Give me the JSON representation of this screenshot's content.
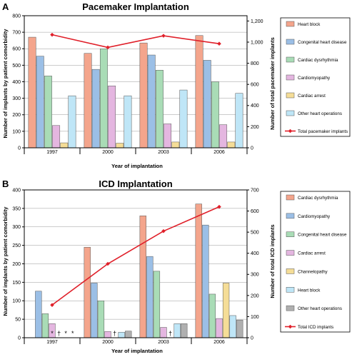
{
  "chart_data": [
    {
      "panel": "A",
      "type": "bar",
      "title": "Pacemaker Implantation",
      "xlabel": "Year of implantation",
      "ylabel": "Number of implants by patient comorbidity",
      "y2label": "Number of total pacemaker implants",
      "categories": [
        "1997",
        "2000",
        "2003",
        "2006"
      ],
      "ylim": [
        0,
        800
      ],
      "yticks": [
        0,
        100,
        200,
        300,
        400,
        500,
        600,
        700,
        800
      ],
      "y2lim": [
        0,
        1250
      ],
      "y2ticks": [
        0,
        200,
        400,
        600,
        800,
        1000,
        1200
      ],
      "y2tick_labels": [
        "0",
        "200",
        "400",
        "600",
        "800",
        "1,000",
        "1,200"
      ],
      "grid": true,
      "legend_position": "right",
      "series": [
        {
          "name": "Heart block",
          "color": "#f4a58c",
          "values": [
            670,
            572,
            635,
            680
          ]
        },
        {
          "name": "Congenital heart disease",
          "color": "#9bbfe6",
          "values": [
            555,
            475,
            562,
            530
          ]
        },
        {
          "name": "Cardiac dysrhythmia",
          "color": "#a9dcb6",
          "values": [
            435,
            600,
            470,
            400
          ]
        },
        {
          "name": "Cardiomyopathy",
          "color": "#e4b6e0",
          "values": [
            135,
            375,
            145,
            140
          ]
        },
        {
          "name": "Cardiac arrest",
          "color": "#f5dd97",
          "values": [
            30,
            28,
            35,
            35
          ]
        },
        {
          "name": "Other heart operations",
          "color": "#bfe6f7",
          "values": [
            315,
            315,
            350,
            330
          ]
        }
      ],
      "line": {
        "name": "Total pacemaker implants",
        "color": "#e0202a",
        "values": [
          1070,
          950,
          1060,
          985
        ]
      },
      "annotations": []
    },
    {
      "panel": "B",
      "type": "bar",
      "title": "ICD Implantation",
      "xlabel": "Year of implantation",
      "ylabel": "Number of implants by patient comorbidity",
      "y2label": "Number of total ICD implants",
      "categories": [
        "1997",
        "2000",
        "2003",
        "2006"
      ],
      "ylim": [
        0,
        400
      ],
      "yticks": [
        0,
        50,
        100,
        150,
        200,
        250,
        300,
        350,
        400
      ],
      "y2lim": [
        0,
        700
      ],
      "y2ticks": [
        0,
        100,
        200,
        300,
        400,
        500,
        600,
        700
      ],
      "y2tick_labels": [
        "0",
        "100",
        "200",
        "300",
        "400",
        "500",
        "600",
        "700"
      ],
      "grid": true,
      "legend_position": "right",
      "series": [
        {
          "name": "Cardiac dysrhythmia",
          "color": "#f4a58c",
          "values": [
            0,
            245,
            330,
            362
          ]
        },
        {
          "name": "Cardiomyopathy",
          "color": "#9bbfe6",
          "values": [
            126,
            148,
            220,
            305
          ]
        },
        {
          "name": "Congenital heart disease",
          "color": "#a9dcb6",
          "values": [
            65,
            100,
            180,
            118
          ]
        },
        {
          "name": "Cardiac arrest",
          "color": "#e4b6e0",
          "values": [
            38,
            17,
            28,
            52
          ]
        },
        {
          "name": "Channelopathy",
          "color": "#f5dd97",
          "values": [
            0,
            0,
            0,
            148
          ]
        },
        {
          "name": "Heart block",
          "color": "#bfe6f7",
          "values": [
            0,
            15,
            38,
            60
          ]
        },
        {
          "name": "Other heart operations",
          "color": "#b0b0b0",
          "values": [
            0,
            18,
            38,
            48
          ]
        }
      ],
      "line": {
        "name": "Total ICD implants",
        "color": "#e0202a",
        "values": [
          155,
          350,
          505,
          620
        ]
      },
      "annotations": [
        {
          "category": 0,
          "series": 3,
          "text": "*"
        },
        {
          "category": 0,
          "series": 4,
          "text": "†"
        },
        {
          "category": 0,
          "series": 5,
          "text": "*"
        },
        {
          "category": 0,
          "series": 6,
          "text": "*"
        },
        {
          "category": 1,
          "series": 4,
          "text": "†"
        },
        {
          "category": 2,
          "series": 4,
          "text": "†"
        }
      ]
    }
  ]
}
